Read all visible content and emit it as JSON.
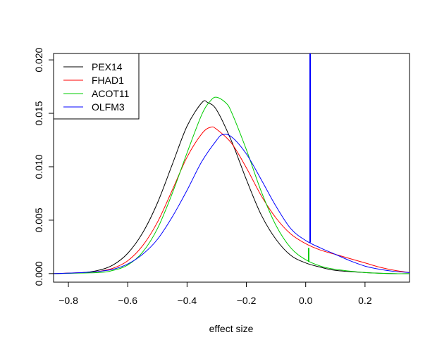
{
  "chart_data": {
    "type": "line",
    "title": "",
    "xlabel": "effect size",
    "ylabel": "",
    "xlim": [
      -0.85,
      0.35
    ],
    "ylim": [
      -0.0008,
      0.0206
    ],
    "x_ticks": [
      -0.8,
      -0.6,
      -0.4,
      -0.2,
      0.0,
      0.2
    ],
    "x_tick_labels": [
      "−0.8",
      "−0.6",
      "−0.4",
      "−0.2",
      "0.0",
      "0.2"
    ],
    "y_ticks": [
      0.0,
      0.005,
      0.01,
      0.015,
      0.02
    ],
    "y_tick_labels": [
      "0.000",
      "0.005",
      "0.010",
      "0.015",
      "0.020"
    ],
    "grid": false,
    "legend_position": "top-left",
    "series": [
      {
        "name": "PEX14",
        "color": "#000000",
        "points": [
          [
            -0.85,
            0.0
          ],
          [
            -0.75,
            0.0001
          ],
          [
            -0.7,
            0.0003
          ],
          [
            -0.65,
            0.0008
          ],
          [
            -0.6,
            0.0019
          ],
          [
            -0.55,
            0.0038
          ],
          [
            -0.5,
            0.0066
          ],
          [
            -0.45,
            0.0102
          ],
          [
            -0.4,
            0.0138
          ],
          [
            -0.35,
            0.016
          ],
          [
            -0.33,
            0.016
          ],
          [
            -0.3,
            0.0153
          ],
          [
            -0.25,
            0.0124
          ],
          [
            -0.2,
            0.0088
          ],
          [
            -0.15,
            0.0055
          ],
          [
            -0.1,
            0.0032
          ],
          [
            -0.05,
            0.0017
          ],
          [
            0.0,
            0.001
          ],
          [
            0.05,
            0.0006
          ],
          [
            0.1,
            0.0003
          ],
          [
            0.2,
            0.0001
          ],
          [
            0.3,
            0.0
          ],
          [
            0.35,
            0.0
          ]
        ]
      },
      {
        "name": "FHAD1",
        "color": "#ff0000",
        "points": [
          [
            -0.85,
            0.0
          ],
          [
            -0.75,
            0.0001
          ],
          [
            -0.7,
            0.0002
          ],
          [
            -0.65,
            0.0005
          ],
          [
            -0.6,
            0.0012
          ],
          [
            -0.55,
            0.0026
          ],
          [
            -0.5,
            0.0048
          ],
          [
            -0.45,
            0.0078
          ],
          [
            -0.4,
            0.0109
          ],
          [
            -0.35,
            0.0131
          ],
          [
            -0.32,
            0.0137
          ],
          [
            -0.3,
            0.0135
          ],
          [
            -0.25,
            0.0122
          ],
          [
            -0.2,
            0.0099
          ],
          [
            -0.15,
            0.0073
          ],
          [
            -0.1,
            0.0052
          ],
          [
            -0.05,
            0.0037
          ],
          [
            0.0,
            0.0028
          ],
          [
            0.05,
            0.0022
          ],
          [
            0.1,
            0.0018
          ],
          [
            0.15,
            0.0014
          ],
          [
            0.2,
            0.001
          ],
          [
            0.25,
            0.0006
          ],
          [
            0.3,
            0.0003
          ],
          [
            0.35,
            0.0001
          ]
        ]
      },
      {
        "name": "ACOT11",
        "color": "#00cc00",
        "points": [
          [
            -0.85,
            0.0
          ],
          [
            -0.7,
            0.0001
          ],
          [
            -0.65,
            0.0003
          ],
          [
            -0.6,
            0.0008
          ],
          [
            -0.55,
            0.002
          ],
          [
            -0.5,
            0.0042
          ],
          [
            -0.45,
            0.0075
          ],
          [
            -0.4,
            0.0113
          ],
          [
            -0.35,
            0.0149
          ],
          [
            -0.32,
            0.0162
          ],
          [
            -0.3,
            0.0165
          ],
          [
            -0.27,
            0.016
          ],
          [
            -0.25,
            0.0151
          ],
          [
            -0.2,
            0.0116
          ],
          [
            -0.15,
            0.0077
          ],
          [
            -0.1,
            0.0045
          ],
          [
            -0.05,
            0.0024
          ],
          [
            0.0,
            0.0013
          ],
          [
            0.05,
            0.0007
          ],
          [
            0.1,
            0.0004
          ],
          [
            0.2,
            0.0001
          ],
          [
            0.3,
            0.0
          ],
          [
            0.35,
            0.0
          ]
        ]
      },
      {
        "name": "OLFM3",
        "color": "#0000ff",
        "points": [
          [
            -0.85,
            0.0
          ],
          [
            -0.75,
            0.0001
          ],
          [
            -0.7,
            0.0002
          ],
          [
            -0.65,
            0.0004
          ],
          [
            -0.6,
            0.0009
          ],
          [
            -0.55,
            0.0018
          ],
          [
            -0.5,
            0.0032
          ],
          [
            -0.45,
            0.0053
          ],
          [
            -0.4,
            0.0078
          ],
          [
            -0.35,
            0.0105
          ],
          [
            -0.3,
            0.0125
          ],
          [
            -0.28,
            0.013
          ],
          [
            -0.25,
            0.0128
          ],
          [
            -0.2,
            0.0112
          ],
          [
            -0.15,
            0.0088
          ],
          [
            -0.1,
            0.0063
          ],
          [
            -0.05,
            0.0042
          ],
          [
            0.0,
            0.0031
          ],
          [
            0.05,
            0.0024
          ],
          [
            0.1,
            0.0018
          ],
          [
            0.15,
            0.0012
          ],
          [
            0.2,
            0.0007
          ],
          [
            0.25,
            0.0004
          ],
          [
            0.3,
            0.0002
          ],
          [
            0.35,
            0.0001
          ]
        ]
      }
    ],
    "vertical_segments": [
      {
        "color": "#0000ff",
        "x": 0.015,
        "y0": 0.0029,
        "y1": 0.0206
      },
      {
        "color": "#00cc00",
        "x": 0.01,
        "y0": 0.0011,
        "y1": 0.0024
      }
    ]
  }
}
